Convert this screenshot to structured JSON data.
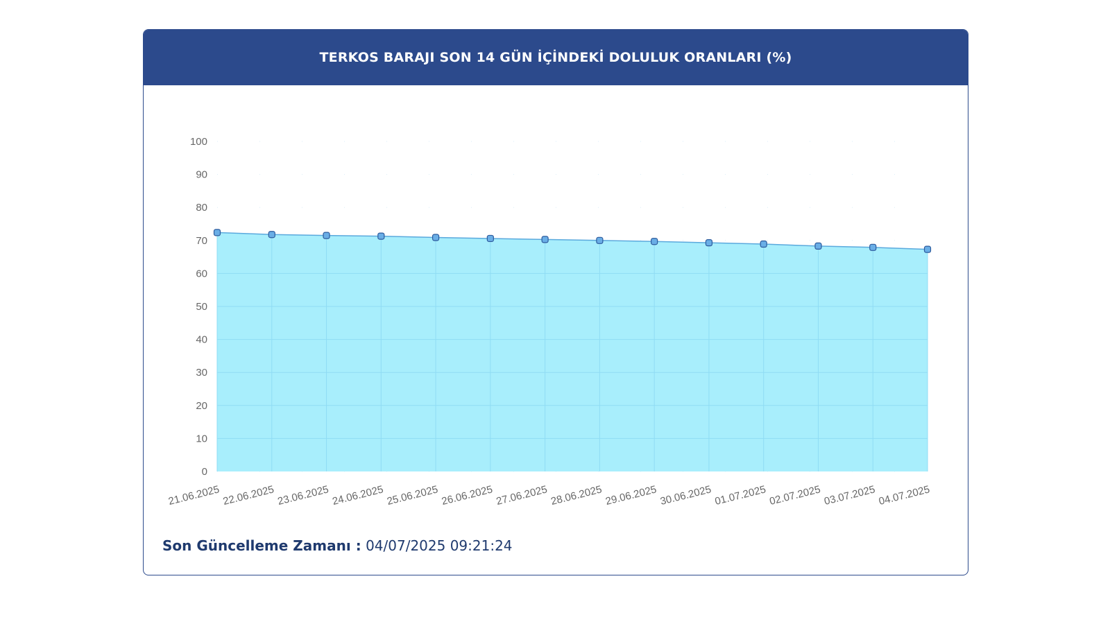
{
  "header": {
    "title": "TERKOS BARAJI SON 14 GÜN İÇİNDEKİ DOLULUK ORANLARI (%)"
  },
  "footer": {
    "label": "Son Güncelleme Zamanı :",
    "value": "04/07/2025 09:21:24"
  },
  "colors": {
    "header_bg": "#2c4a8c",
    "area_fill": "#a8eefc",
    "line": "#5aa9dd",
    "marker_fill": "#6aaee6",
    "marker_stroke": "#2c5a9c",
    "grid": "#d9eef8"
  },
  "chart_data": {
    "type": "area",
    "title": "TERKOS BARAJI SON 14 GÜN İÇİNDEKİ DOLULUK ORANLARI (%)",
    "categories": [
      "21.06.2025",
      "22.06.2025",
      "23.06.2025",
      "24.06.2025",
      "25.06.2025",
      "26.06.2025",
      "27.06.2025",
      "28.06.2025",
      "29.06.2025",
      "30.06.2025",
      "01.07.2025",
      "02.07.2025",
      "03.07.2025",
      "04.07.2025"
    ],
    "series": [
      {
        "values": [
          72.4,
          71.8,
          71.5,
          71.3,
          70.9,
          70.6,
          70.3,
          70.0,
          69.7,
          69.3,
          68.9,
          68.3,
          67.9,
          67.3
        ]
      }
    ],
    "ylim": [
      0,
      100
    ],
    "yticks": [
      "0",
      "10",
      "20",
      "30",
      "40",
      "50",
      "60",
      "70",
      "80",
      "90",
      "100"
    ],
    "xlabel": "",
    "ylabel": "",
    "grid": true,
    "legend": false
  }
}
